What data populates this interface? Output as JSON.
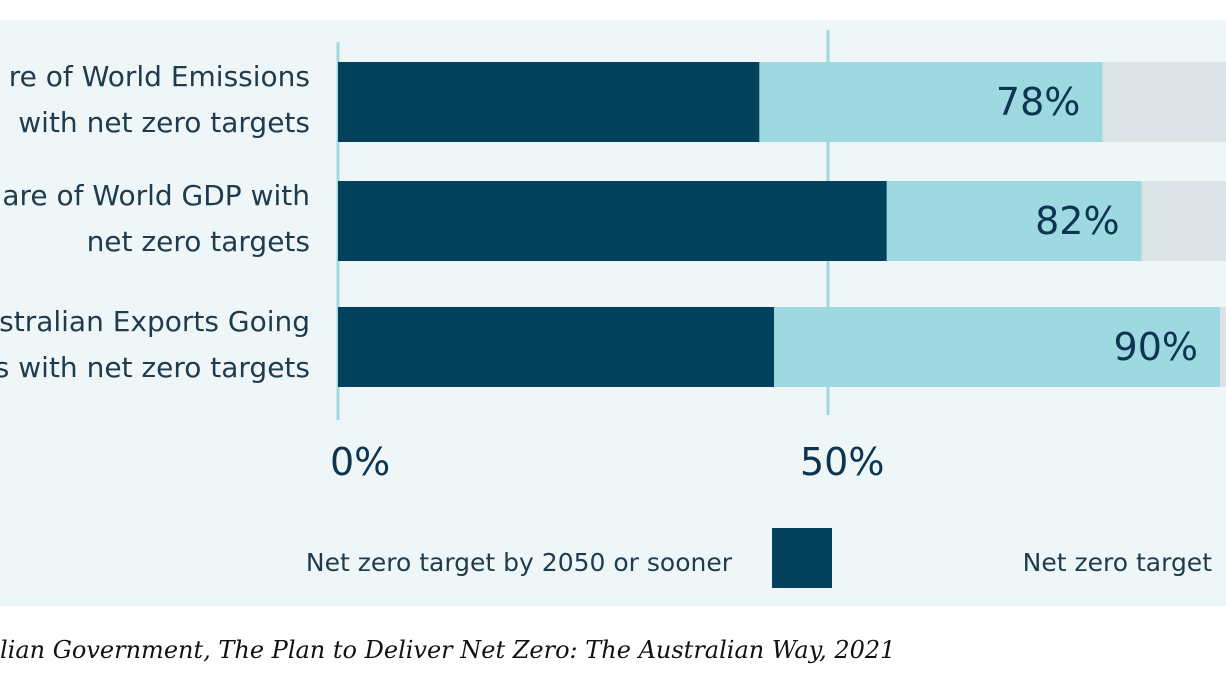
{
  "colors": {
    "dark": "#03415c",
    "light": "#9ed8e0",
    "remainder": "#dbe3e6",
    "grid": "#9ed8e0",
    "panel": "#eef6f8"
  },
  "chart_data": {
    "type": "bar",
    "orientation": "horizontal",
    "stacked": true,
    "categories": [
      "re of World Emissions\nwith net zero targets",
      "are of World GDP with\nnet zero targets",
      "stralian Exports Going\ns with net zero targets"
    ],
    "series": [
      {
        "name": "Net zero target by 2050 or sooner",
        "values": [
          43,
          56,
          44.5
        ]
      },
      {
        "name": "Net zero target",
        "values": [
          35,
          26,
          45.5
        ]
      }
    ],
    "totals": [
      78,
      82,
      90
    ],
    "value_labels": [
      "78%",
      "82%",
      "90%"
    ],
    "xlim": [
      0,
      90
    ],
    "xticks": [
      0,
      50
    ],
    "xtick_labels": [
      "0%",
      "50%"
    ],
    "grid": true,
    "legend_position": "bottom"
  },
  "caption": "lian Government, The Plan to Deliver Net Zero: The Australian Way, 2021"
}
